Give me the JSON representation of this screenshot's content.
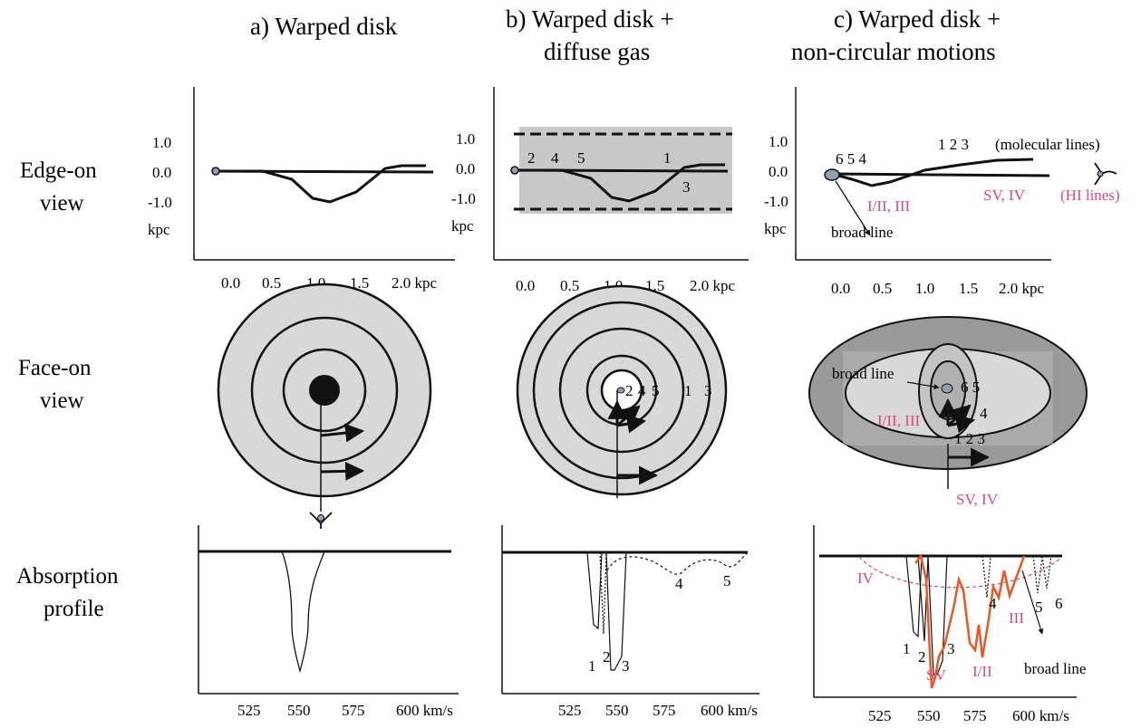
{
  "titles": {
    "a": "a) Warped disk",
    "b_line1": "b) Warped disk +",
    "b_line2": "diffuse gas",
    "c_line1": "c) Warped disk   +",
    "c_line2": "non-circular motions"
  },
  "row_labels": {
    "edge_line1": "Edge-on",
    "edge_line2": "view",
    "face_line1": "Face-on",
    "face_line2": "view",
    "abs_line1": "Absorption",
    "abs_line2": "profile"
  },
  "edge_axis": {
    "y_ticks": [
      "1.0",
      "0.0",
      "-1.0"
    ],
    "y_unit": "kpc",
    "x_ticks": [
      "0.0",
      "0.5",
      "1.0",
      "1.5"
    ],
    "x_last": "2.0 kpc"
  },
  "vel_axis": {
    "ticks": [
      "525",
      "550",
      "575"
    ],
    "last": "600 km/s"
  },
  "panel_b": {
    "edge_labels": [
      "2",
      "4",
      "5",
      "1",
      "3"
    ],
    "face_labels": [
      "2",
      "4",
      "5",
      "1",
      "3"
    ],
    "abs_labels": [
      "1",
      "2",
      "3",
      "4",
      "5"
    ]
  },
  "panel_c": {
    "edge_left_labels": "6 5   4",
    "molecular_numbers": "1 2 3",
    "molecular_text": "(molecular lines)",
    "hi_lines": "(HI lines)",
    "edge_I_II_III": "I/II, III",
    "edge_SV_IV": "SV, IV",
    "edge_broad": "broad line",
    "face_broad": "broad line",
    "face_65": "6 5",
    "face_4": "4",
    "face_123": "1 2 3",
    "face_I_II_III": "I/II, III",
    "face_SV_IV": "SV, IV",
    "abs_IV": "IV",
    "abs_III": "III",
    "abs_SV": "SV",
    "abs_I_II": "I/II",
    "abs_1": "1",
    "abs_2": "2",
    "abs_3": "3",
    "abs_4": "4",
    "abs_5": "5",
    "abs_6": "6",
    "abs_broad": "broad line"
  },
  "colors": {
    "highlight_text": "#e0467c",
    "orange_profile": "#ee5522",
    "disk_gray": "#d8d8d8",
    "dark_gray": "#9a9a9a",
    "band_gray": "#c8c8c8"
  }
}
